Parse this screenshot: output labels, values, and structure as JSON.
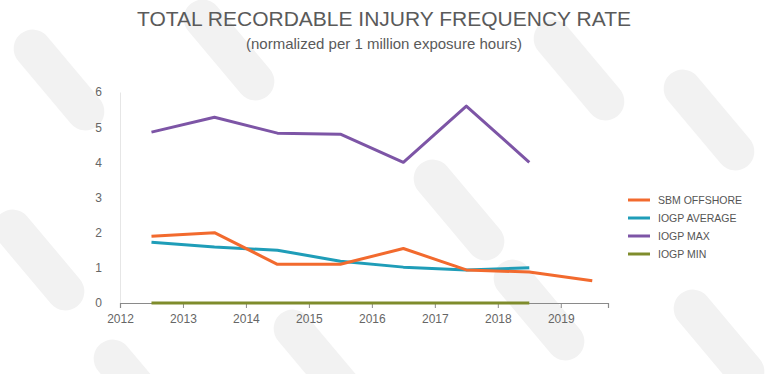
{
  "chart_data": {
    "type": "line",
    "title": "TOTAL RECORDABLE INJURY FREQUENCY RATE",
    "subtitle": "(normalized per 1 million exposure hours)",
    "x": [
      2012.5,
      2013.5,
      2014.5,
      2015.5,
      2016.5,
      2017.5,
      2018.5,
      2019.5
    ],
    "xlim": [
      2012,
      2019.75
    ],
    "xticks": [
      2012,
      2013,
      2014,
      2015,
      2016,
      2017,
      2018,
      2019
    ],
    "ylim": [
      0,
      6
    ],
    "yticks": [
      0,
      1,
      2,
      3,
      4,
      5,
      6
    ],
    "grid": false,
    "legend": "right",
    "series": [
      {
        "name": "SBM OFFSHORE",
        "color": "#f26a2e",
        "values": [
          1.9,
          2.0,
          1.1,
          1.1,
          1.55,
          0.94,
          0.88,
          0.63
        ]
      },
      {
        "name": "IOGP AVERAGE",
        "color": "#1f9db8",
        "values": [
          1.73,
          1.59,
          1.5,
          1.19,
          1.02,
          0.94,
          1.0,
          null
        ]
      },
      {
        "name": "IOGP MAX",
        "color": "#7d55a6",
        "values": [
          4.86,
          5.28,
          4.83,
          4.8,
          4.0,
          5.6,
          4.0,
          null
        ]
      },
      {
        "name": "IOGP MIN",
        "color": "#7f8c2c",
        "values": [
          0,
          0,
          0,
          0,
          0,
          0,
          0,
          null
        ]
      }
    ]
  }
}
